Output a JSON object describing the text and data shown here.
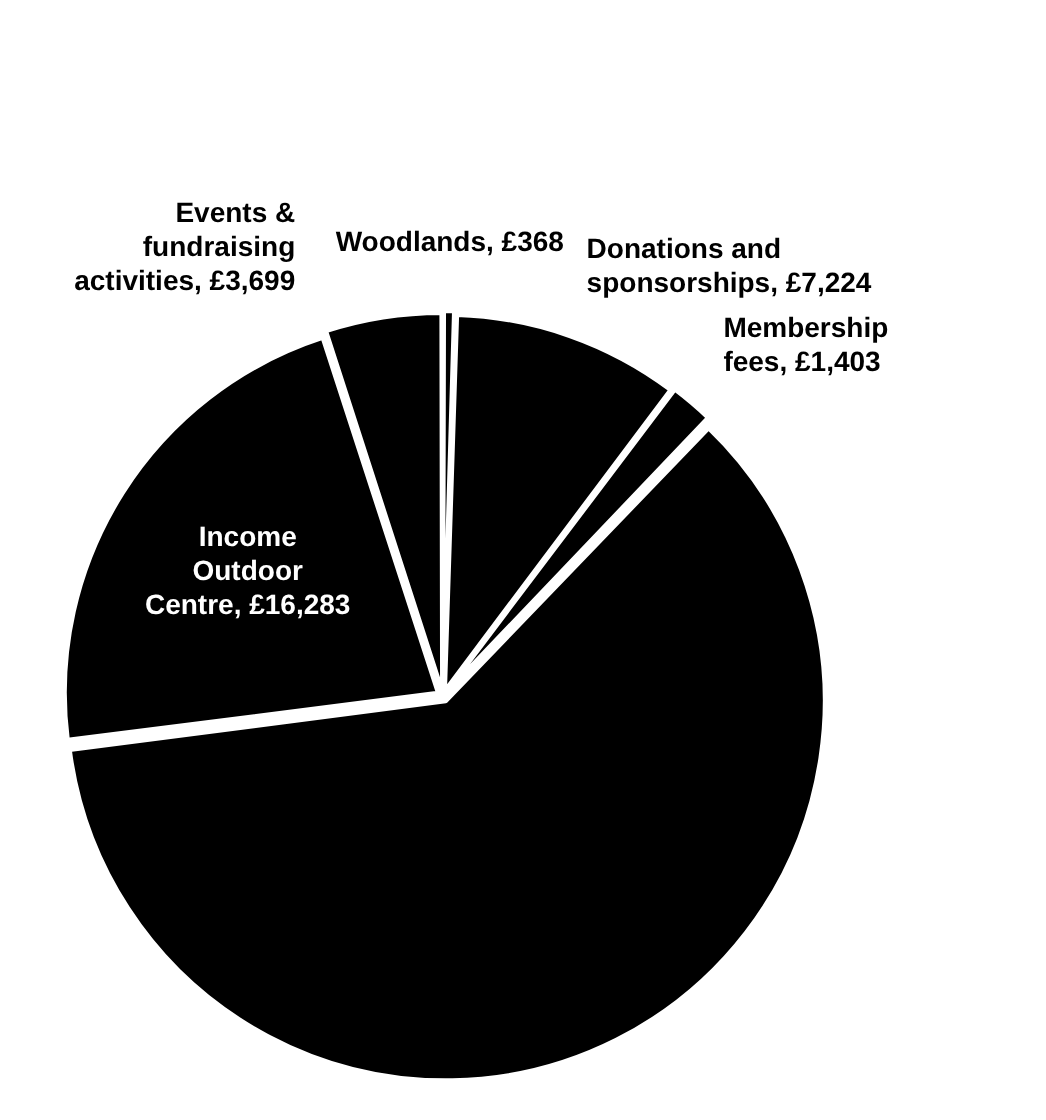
{
  "chart_data": {
    "type": "pie",
    "categories": [
      "Woodlands",
      "Donations and sponsorships",
      "Membership fees",
      null,
      "Income Outdoor Centre",
      "Events & fundraising activities"
    ],
    "values": [
      368,
      7224,
      1403,
      45000,
      16283,
      3699
    ],
    "value_labels": [
      "£368",
      "£7,224",
      "£1,403",
      null,
      "£16,283",
      "£3,699"
    ],
    "colors": [
      "#000000",
      "#000000",
      "#000000",
      "#000000",
      "#000000",
      "#000000"
    ],
    "legend": false
  }
}
